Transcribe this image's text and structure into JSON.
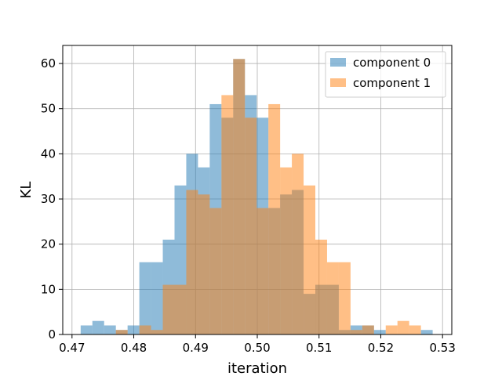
{
  "chart_data": {
    "type": "bar",
    "subtype": "overlapping-histogram",
    "title": "",
    "xlabel": "iteration",
    "ylabel": "KL",
    "xlim": [
      0.4685,
      0.5315
    ],
    "ylim": [
      0,
      64
    ],
    "xticks": [
      0.47,
      0.48,
      0.49,
      0.5,
      0.51,
      0.52,
      0.53
    ],
    "xtick_labels": [
      "0.47",
      "0.48",
      "0.49",
      "0.50",
      "0.51",
      "0.52",
      "0.53"
    ],
    "yticks": [
      0,
      10,
      20,
      30,
      40,
      50,
      60
    ],
    "ytick_labels": [
      "0",
      "10",
      "20",
      "30",
      "40",
      "50",
      "60"
    ],
    "grid": true,
    "legend_position": "top-right",
    "series": [
      {
        "name": "component 0",
        "color": "#1f77b4",
        "opacity": 0.5,
        "bin_start": 0.4714,
        "bin_width": 0.0019,
        "counts": [
          2,
          3,
          2,
          1,
          2,
          16,
          16,
          21,
          33,
          40,
          37,
          51,
          48,
          61,
          53,
          48,
          28,
          31,
          32,
          9,
          11,
          11,
          1,
          2,
          2,
          1,
          0,
          0,
          0,
          1
        ]
      },
      {
        "name": "component 1",
        "color": "#ff7f0e",
        "opacity": 0.5,
        "bin_start": 0.4714,
        "bin_width": 0.0019,
        "counts": [
          0,
          0,
          0,
          1,
          0,
          2,
          1,
          11,
          11,
          32,
          31,
          28,
          53,
          61,
          48,
          28,
          51,
          37,
          40,
          33,
          21,
          16,
          16,
          1,
          2,
          0,
          2,
          3,
          2,
          0
        ]
      }
    ]
  }
}
